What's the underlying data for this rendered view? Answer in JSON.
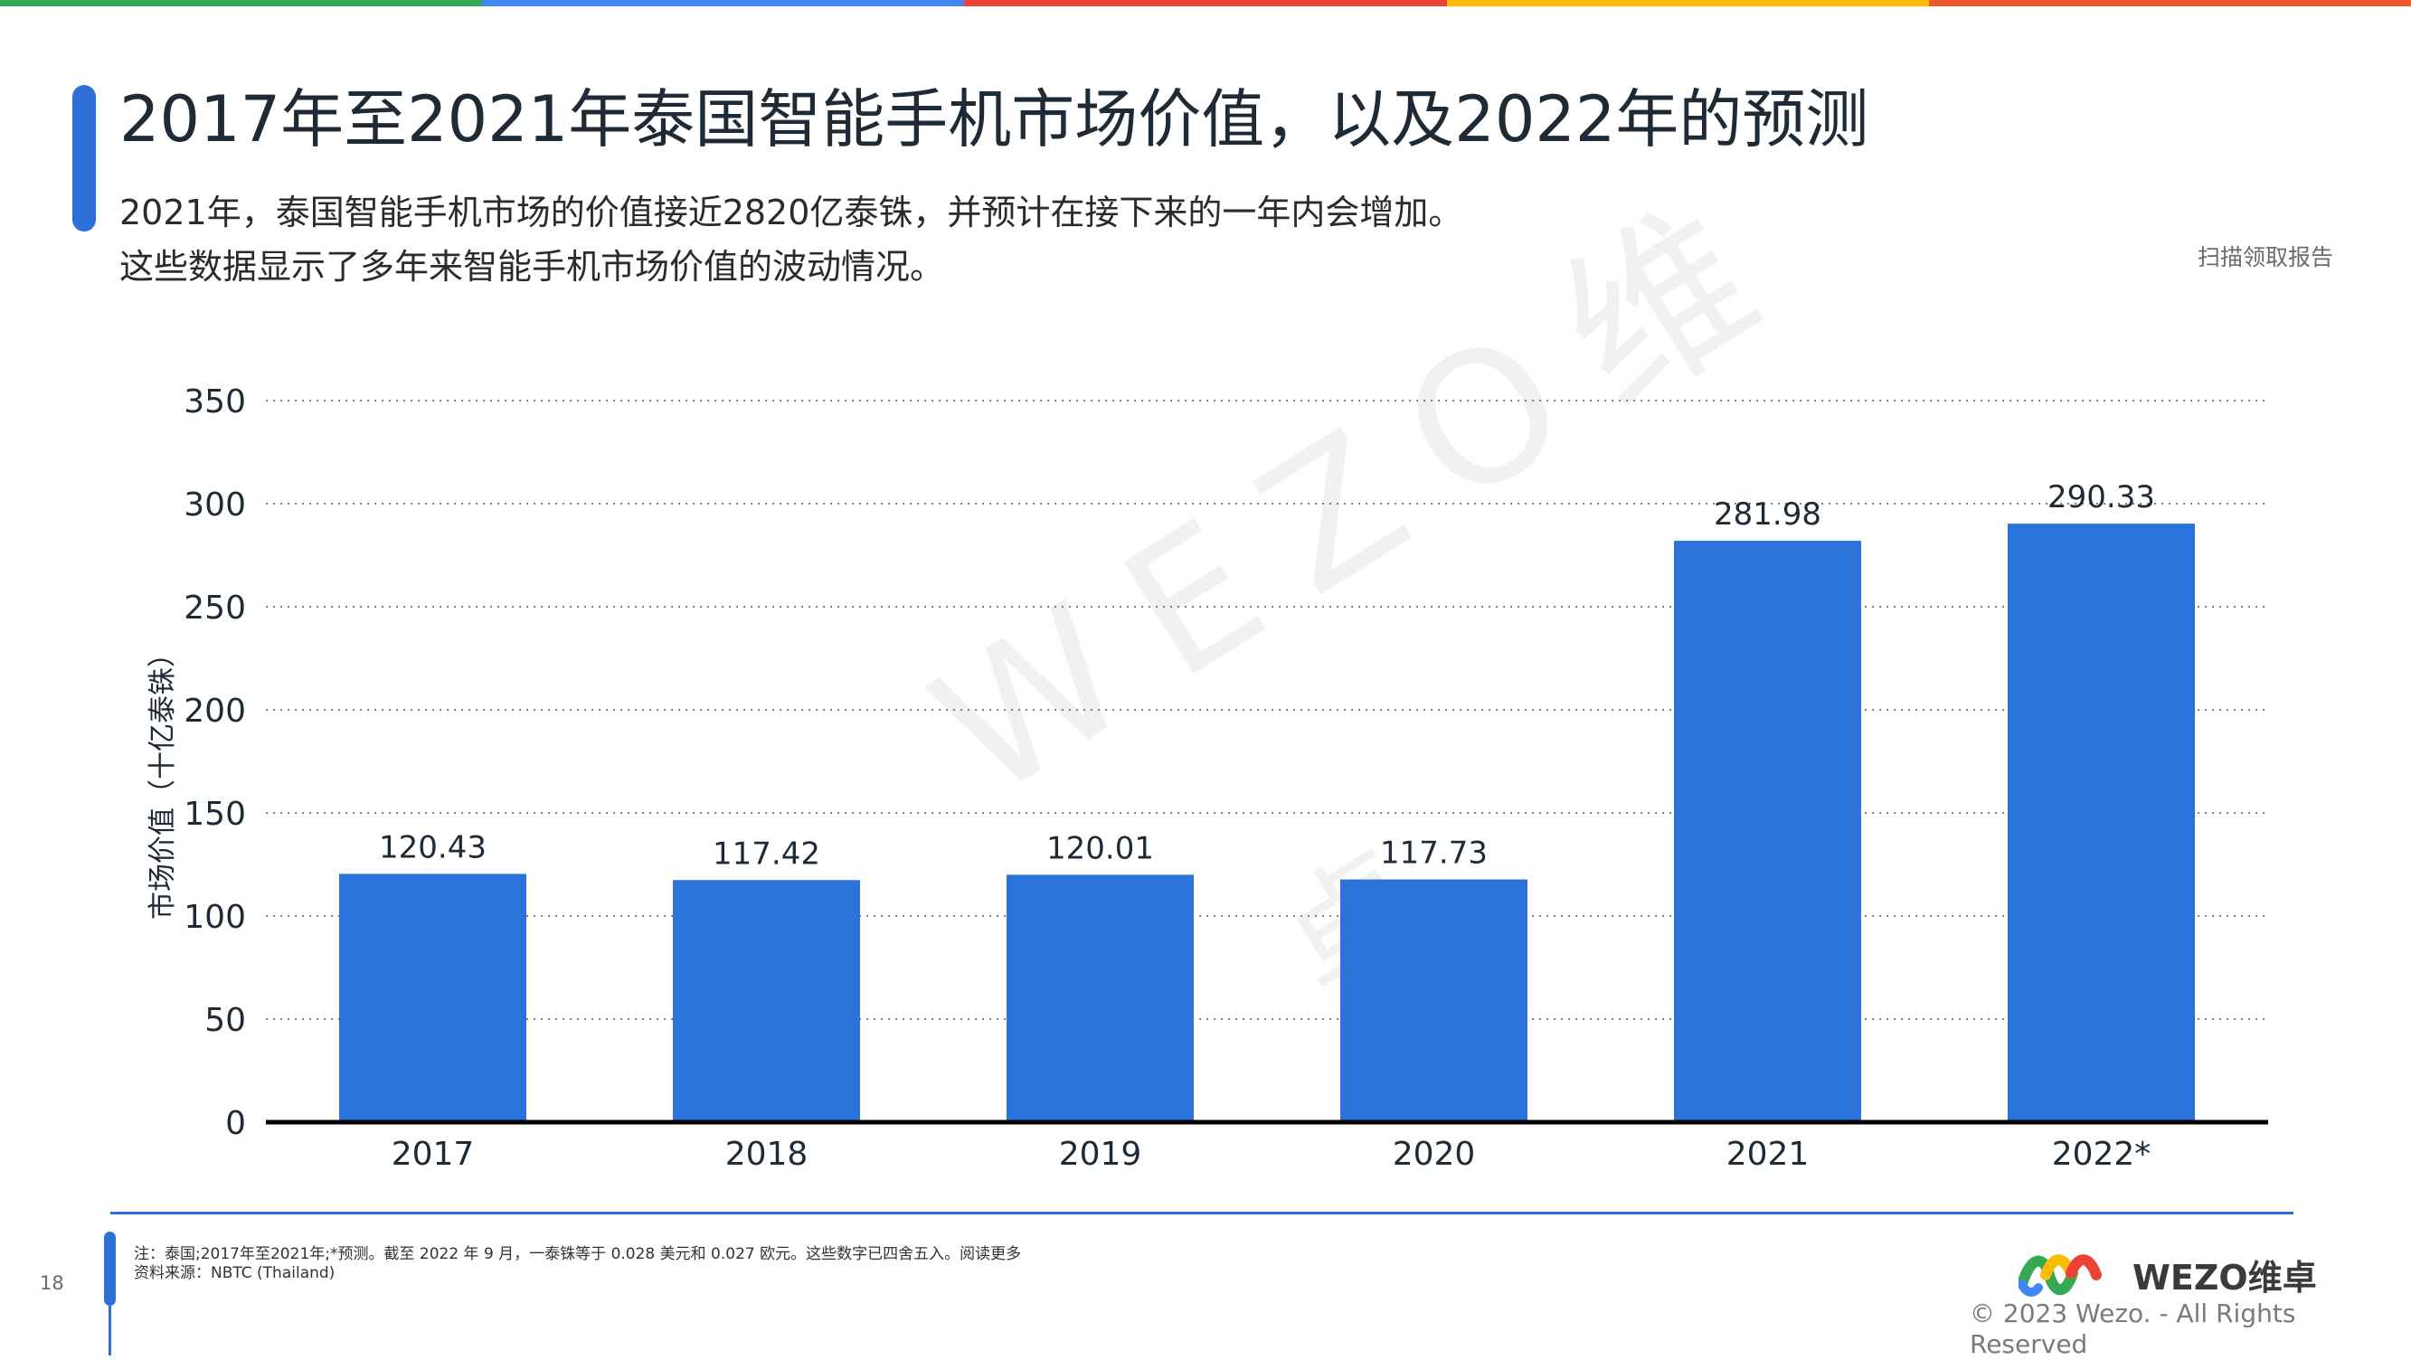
{
  "colors": {
    "stripe": [
      "#34a853",
      "#4285f4",
      "#ea4335",
      "#fbbc05",
      "#ea5a2c"
    ],
    "accent": "#2e6fd8",
    "bar": "#2b72db",
    "grid": "#7a7a7a",
    "axis": "#000000"
  },
  "header": {
    "title": "2017年至2021年泰国智能手机市场价值，以及2022年的预测",
    "subtitle_line1": "2021年，泰国智能手机市场的价值接近2820亿泰铢，并预计在接下来的一年内会增加。",
    "subtitle_line2": "这些数据显示了多年来智能手机市场价值的波动情况。",
    "scan_label": "扫描领取报告"
  },
  "watermark": {
    "text": "WEZO维",
    "text2": "卓"
  },
  "chart_data": {
    "type": "bar",
    "categories": [
      "2017",
      "2018",
      "2019",
      "2020",
      "2021",
      "2022*"
    ],
    "values": [
      120.43,
      117.42,
      120.01,
      117.73,
      281.98,
      290.33
    ],
    "value_labels": [
      "120.43",
      "117.42",
      "120.01",
      "117.73",
      "281.98",
      "290.33"
    ],
    "ylabel": "市场价值（十亿泰铢）",
    "ylim": [
      0,
      350
    ],
    "yticks": [
      0,
      50,
      100,
      150,
      200,
      250,
      300,
      350
    ],
    "grid": true,
    "grid_style": "dotted"
  },
  "footer": {
    "page_number": "18",
    "note_line1": "注：泰国;2017年至2021年;*预测。截至 2022 年 9 月，一泰铢等于 0.028 美元和 0.027 欧元。这些数字已四舍五入。阅读更多",
    "note_line2": "资料来源：NBTC (Thailand)",
    "logo_text": "WEZO维卓",
    "copyright": "© 2023 Wezo. - All Rights Reserved"
  }
}
